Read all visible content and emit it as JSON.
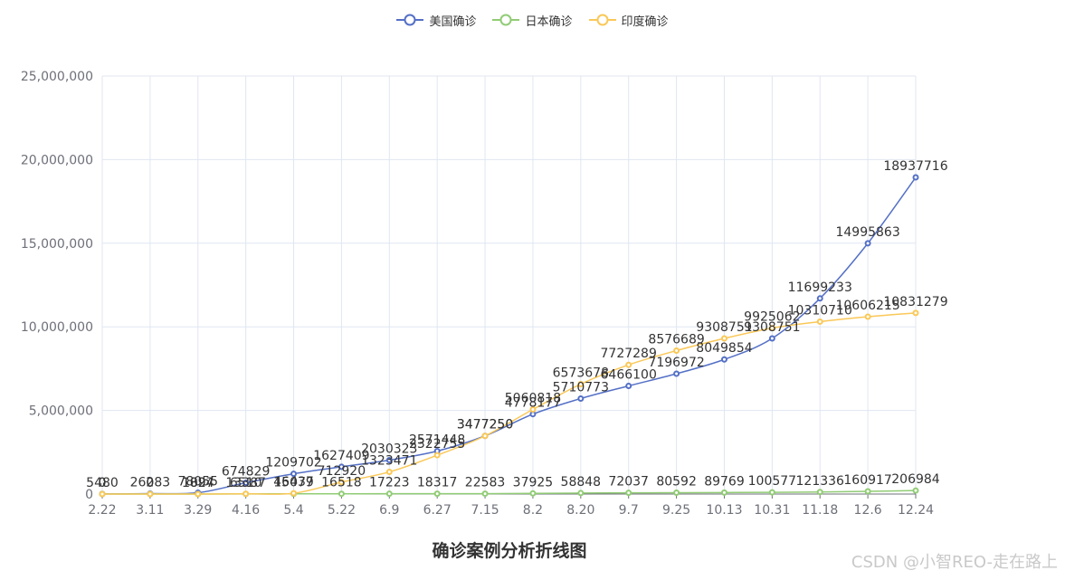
{
  "chart_data": {
    "type": "line",
    "title": "确诊案例分析折线图",
    "categories": [
      "2.22",
      "3.11",
      "3.29",
      "4.16",
      "5.4",
      "5.22",
      "6.9",
      "6.27",
      "7.15",
      "8.2",
      "8.20",
      "9.7",
      "9.25",
      "10.13",
      "10.31",
      "11.18",
      "12.6",
      "12.24"
    ],
    "ylim": [
      0,
      25000000
    ],
    "yticks": [
      "0",
      "5,000,000",
      "10,000,000",
      "15,000,000",
      "20,000,000",
      "25,000,000"
    ],
    "ytick_values": [
      0,
      5000000,
      10000000,
      15000000,
      20000000,
      25000000
    ],
    "grid": true,
    "legend_position": "top-center",
    "series": [
      {
        "name": "美国确诊",
        "color": "#5470c6",
        "values": [
          5480,
          26283,
          78055,
          674829,
          1209702,
          1627409,
          2030323,
          2571448,
          3477250,
          4778177,
          5710773,
          6466100,
          7196972,
          8049854,
          9308751,
          11699233,
          14995863,
          18937716
        ]
      },
      {
        "name": "日本确诊",
        "color": "#91cc75",
        "values": [
          0,
          0,
          1897,
          6510,
          15079,
          16518,
          17223,
          18317,
          22583,
          37925,
          58848,
          72037,
          80592,
          89769,
          100577,
          121336,
          160917,
          206984
        ]
      },
      {
        "name": "印度确诊",
        "color": "#fac858",
        "values": [
          0,
          0,
          1024,
          13387,
          46437,
          712920,
          1323471,
          2322755,
          3477250,
          5060818,
          6573678,
          7727289,
          8576689,
          9308751,
          9925062,
          10310710,
          10606215,
          10831279
        ]
      }
    ]
  },
  "watermark": "CSDN @小智REO-走在路上"
}
